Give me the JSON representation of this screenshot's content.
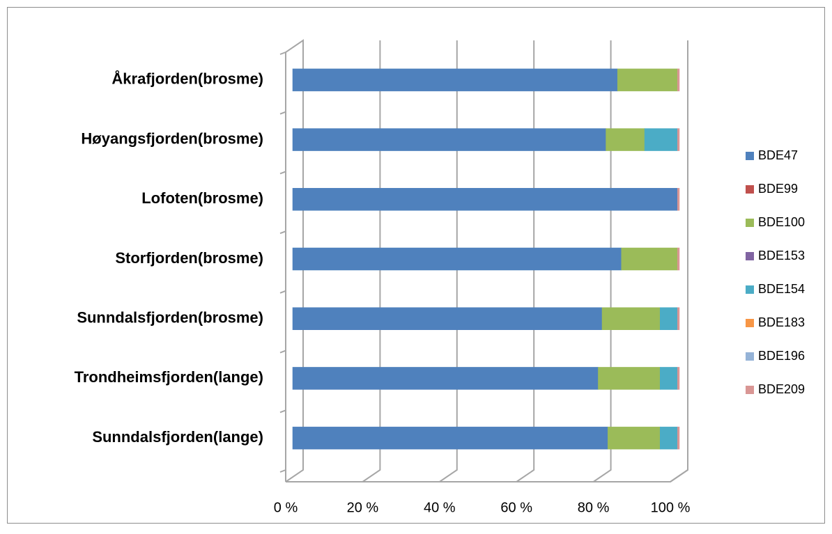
{
  "chart_data": {
    "type": "stacked-bar",
    "categories": [
      "Åkrafjorden(brosme)",
      "Høyangsfjorden(brosme)",
      "Lofoten(brosme)",
      "Storfjorden(brosme)",
      "Sunndalsfjorden(brosme)",
      "Trondheimsfjorden(lange)",
      "Sunndalsfjorden(lange)"
    ],
    "series": [
      {
        "name": "BDE47",
        "color": "#4f81bd",
        "values": [
          84,
          81,
          99.5,
          85,
          80,
          79,
          81.5
        ]
      },
      {
        "name": "BDE99",
        "color": "#c0504d",
        "values": [
          0,
          0,
          0,
          0,
          0,
          0,
          0
        ]
      },
      {
        "name": "BDE100",
        "color": "#9bbb59",
        "values": [
          15.5,
          10,
          0,
          14.5,
          15,
          16,
          13.5
        ]
      },
      {
        "name": "BDE153",
        "color": "#8064a2",
        "values": [
          0,
          0,
          0,
          0,
          0,
          0,
          0
        ]
      },
      {
        "name": "BDE154",
        "color": "#4bacc6",
        "values": [
          0,
          8.5,
          0,
          0,
          4.5,
          4.5,
          4.5
        ]
      },
      {
        "name": "BDE183",
        "color": "#f79646",
        "values": [
          0,
          0,
          0,
          0,
          0,
          0,
          0
        ]
      },
      {
        "name": "BDE196",
        "color": "#95b3d7",
        "values": [
          0,
          0,
          0,
          0,
          0,
          0,
          0
        ]
      },
      {
        "name": "BDE209",
        "color": "#d99694",
        "values": [
          0.5,
          0.5,
          0.5,
          0.5,
          0.5,
          0.5,
          0.5
        ]
      }
    ],
    "xlim": [
      0,
      100
    ],
    "xticks": [
      {
        "value": 0,
        "label": "0 %"
      },
      {
        "value": 20,
        "label": "20 %"
      },
      {
        "value": 40,
        "label": "40 %"
      },
      {
        "value": 60,
        "label": "60 %"
      },
      {
        "value": 80,
        "label": "80 %"
      },
      {
        "value": 100,
        "label": "100 %"
      }
    ],
    "grid": true,
    "legend": "right"
  }
}
